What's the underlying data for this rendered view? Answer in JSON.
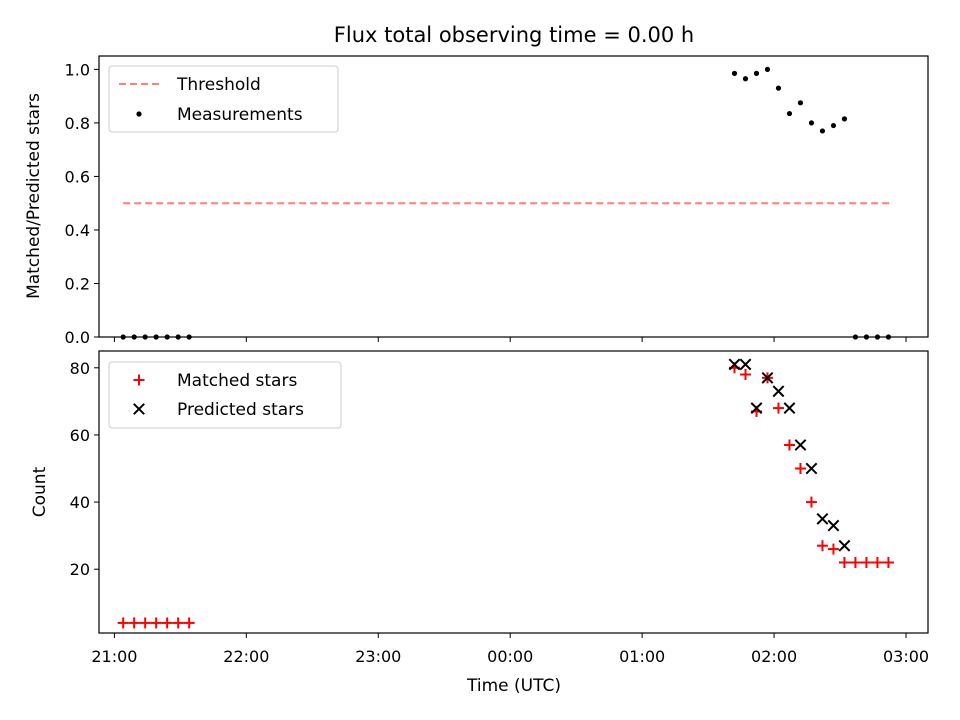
{
  "title": "Flux total observing time = 0.00 h",
  "colors": {
    "threshold": "#ff7f7f",
    "measurement": "#000000",
    "matched": "#ff0000",
    "predicted": "#000000"
  },
  "chart_data": [
    {
      "type": "scatter",
      "ylabel": "Matched/Predicted stars",
      "ylim": [
        0,
        1.05
      ],
      "yticks": [
        "0.0",
        "0.2",
        "0.4",
        "0.6",
        "0.8",
        "1.0"
      ],
      "ytick_values": [
        0,
        0.2,
        0.4,
        0.6,
        0.8,
        1.0
      ],
      "legend_position": "upper-left",
      "legend": {
        "threshold": "Threshold",
        "measurements": "Measurements"
      },
      "threshold": {
        "value": 0.5,
        "x_start": "21:04",
        "x_end": "02:53"
      },
      "measurements": [
        {
          "t": "21:04",
          "y": 0.0
        },
        {
          "t": "21:09",
          "y": 0.0
        },
        {
          "t": "21:14",
          "y": 0.0
        },
        {
          "t": "21:19",
          "y": 0.0
        },
        {
          "t": "21:24",
          "y": 0.0
        },
        {
          "t": "21:29",
          "y": 0.0
        },
        {
          "t": "21:34",
          "y": 0.0
        },
        {
          "t": "01:42",
          "y": 0.985
        },
        {
          "t": "01:47",
          "y": 0.965
        },
        {
          "t": "01:52",
          "y": 0.985
        },
        {
          "t": "01:57",
          "y": 1.0
        },
        {
          "t": "02:02",
          "y": 0.93
        },
        {
          "t": "02:07",
          "y": 0.835
        },
        {
          "t": "02:12",
          "y": 0.875
        },
        {
          "t": "02:17",
          "y": 0.8
        },
        {
          "t": "02:22",
          "y": 0.77
        },
        {
          "t": "02:27",
          "y": 0.79
        },
        {
          "t": "02:32",
          "y": 0.815
        },
        {
          "t": "02:37",
          "y": 0.0
        },
        {
          "t": "02:42",
          "y": 0.0
        },
        {
          "t": "02:47",
          "y": 0.0
        },
        {
          "t": "02:52",
          "y": 0.0
        }
      ]
    },
    {
      "type": "scatter",
      "ylabel": "Count",
      "xlabel": "Time (UTC)",
      "ylim": [
        1,
        85
      ],
      "yticks": [
        "20",
        "40",
        "60",
        "80"
      ],
      "ytick_values": [
        20,
        40,
        60,
        80
      ],
      "xticks": [
        "21:00",
        "22:00",
        "23:00",
        "00:00",
        "01:00",
        "02:00",
        "03:00"
      ],
      "xrange": [
        "20:53",
        "03:10"
      ],
      "legend_position": "upper-left",
      "series": [
        {
          "name": "Matched stars",
          "marker": "plus",
          "points": [
            {
              "t": "21:04",
              "y": 4
            },
            {
              "t": "21:09",
              "y": 4
            },
            {
              "t": "21:14",
              "y": 4
            },
            {
              "t": "21:19",
              "y": 4
            },
            {
              "t": "21:24",
              "y": 4
            },
            {
              "t": "21:29",
              "y": 4
            },
            {
              "t": "21:34",
              "y": 4
            },
            {
              "t": "01:42",
              "y": 80
            },
            {
              "t": "01:47",
              "y": 78
            },
            {
              "t": "01:52",
              "y": 67
            },
            {
              "t": "01:57",
              "y": 77
            },
            {
              "t": "02:02",
              "y": 68
            },
            {
              "t": "02:07",
              "y": 57
            },
            {
              "t": "02:12",
              "y": 50
            },
            {
              "t": "02:17",
              "y": 40
            },
            {
              "t": "02:22",
              "y": 27
            },
            {
              "t": "02:27",
              "y": 26
            },
            {
              "t": "02:32",
              "y": 22
            },
            {
              "t": "02:37",
              "y": 22
            },
            {
              "t": "02:42",
              "y": 22
            },
            {
              "t": "02:47",
              "y": 22
            },
            {
              "t": "02:52",
              "y": 22
            }
          ]
        },
        {
          "name": "Predicted stars",
          "marker": "x",
          "points": [
            {
              "t": "01:42",
              "y": 81
            },
            {
              "t": "01:47",
              "y": 81
            },
            {
              "t": "01:52",
              "y": 68
            },
            {
              "t": "01:57",
              "y": 77
            },
            {
              "t": "02:02",
              "y": 73
            },
            {
              "t": "02:07",
              "y": 68
            },
            {
              "t": "02:12",
              "y": 57
            },
            {
              "t": "02:17",
              "y": 50
            },
            {
              "t": "02:22",
              "y": 35
            },
            {
              "t": "02:27",
              "y": 33
            },
            {
              "t": "02:32",
              "y": 27
            }
          ]
        }
      ]
    }
  ]
}
